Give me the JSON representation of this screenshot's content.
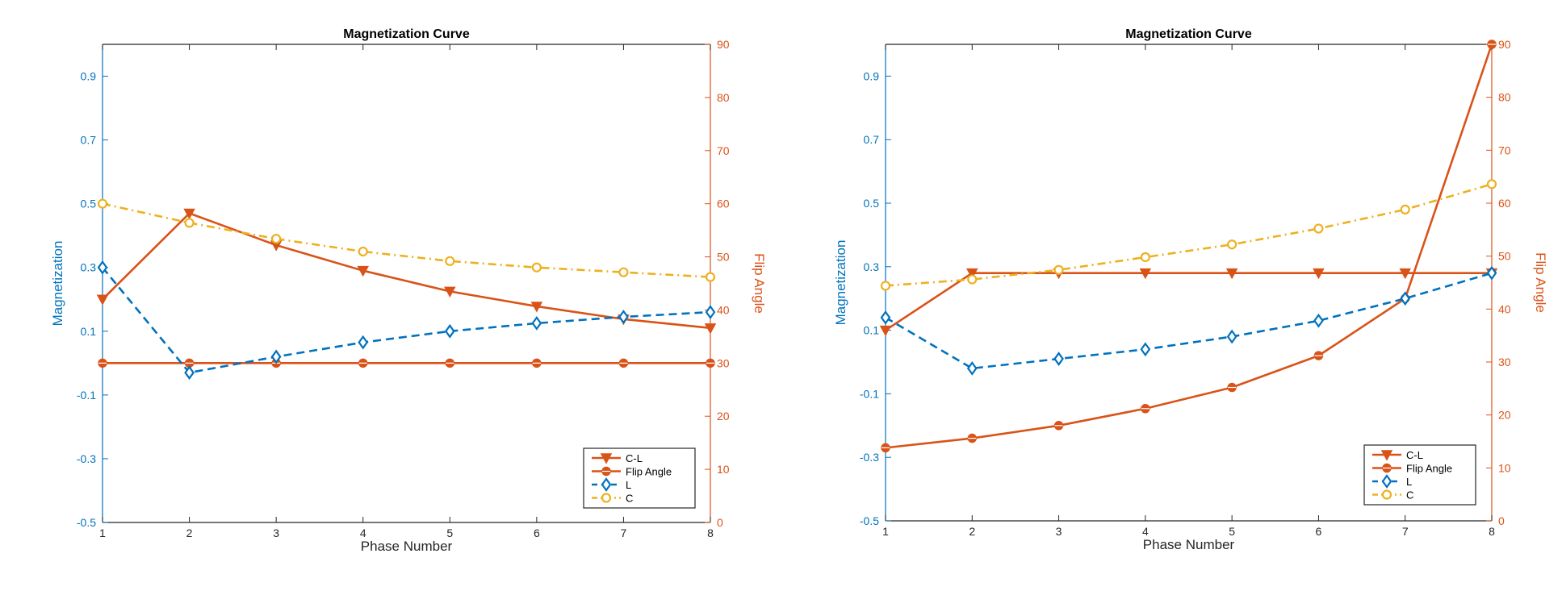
{
  "colors": {
    "left_axis": "#0072BD",
    "right_axis": "#D95319",
    "cl": "#D95319",
    "flip": "#D95319",
    "l": "#0072BD",
    "c": "#EDB120",
    "frame": "#262626"
  },
  "chart_data": [
    {
      "type": "line",
      "title": "Magnetization Curve",
      "xlabel": "Phase Number",
      "ylabel_left": "Magnetization",
      "ylabel_right": "Flip Angle",
      "x": [
        1,
        2,
        3,
        4,
        5,
        6,
        7,
        8
      ],
      "xlim": [
        1,
        8
      ],
      "ylim_left": [
        -0.5,
        1.0
      ],
      "ylim_right": [
        0,
        90
      ],
      "yticks_left": [
        "-0.5",
        "-0.3",
        "-0.1",
        "0.1",
        "0.3",
        "0.5",
        "0.7",
        "0.9"
      ],
      "yticks_right": [
        "0",
        "10",
        "20",
        "30",
        "40",
        "50",
        "60",
        "70",
        "80",
        "90"
      ],
      "xticks": [
        "1",
        "2",
        "3",
        "4",
        "5",
        "6",
        "7",
        "8"
      ],
      "grid": false,
      "legend_position": "bottom-right",
      "series": [
        {
          "name": "C-L",
          "axis": "left",
          "style": "solid",
          "marker": "triangle-down",
          "color_key": "cl",
          "values": [
            0.2,
            0.47,
            0.37,
            0.29,
            0.225,
            0.178,
            0.138,
            0.11
          ]
        },
        {
          "name": "Flip Angle",
          "axis": "right",
          "style": "solid",
          "marker": "circle",
          "color_key": "flip",
          "values": [
            30,
            30,
            30,
            30,
            30,
            30,
            30,
            30
          ]
        },
        {
          "name": "L",
          "axis": "left",
          "style": "dashed",
          "marker": "diamond",
          "color_key": "l",
          "values": [
            0.3,
            -0.03,
            0.02,
            0.065,
            0.1,
            0.125,
            0.145,
            0.16
          ]
        },
        {
          "name": "C",
          "axis": "left",
          "style": "dashdot",
          "marker": "circle-open",
          "color_key": "c",
          "values": [
            0.5,
            0.44,
            0.39,
            0.35,
            0.32,
            0.3,
            0.285,
            0.27
          ]
        }
      ]
    },
    {
      "type": "line",
      "title": "Magnetization Curve",
      "xlabel": "Phase Number",
      "ylabel_left": "Magnetization",
      "ylabel_right": "Flip Angle",
      "x": [
        1,
        2,
        3,
        4,
        5,
        6,
        7,
        8
      ],
      "xlim": [
        1,
        8
      ],
      "ylim_left": [
        -0.5,
        1.0
      ],
      "ylim_right": [
        0,
        90
      ],
      "yticks_left": [
        "-0.5",
        "-0.3",
        "-0.1",
        "0.1",
        "0.3",
        "0.5",
        "0.7",
        "0.9"
      ],
      "yticks_right": [
        "0",
        "10",
        "20",
        "30",
        "40",
        "50",
        "60",
        "70",
        "80",
        "90"
      ],
      "xticks": [
        "1",
        "2",
        "3",
        "4",
        "5",
        "6",
        "7",
        "8"
      ],
      "grid": false,
      "legend_position": "bottom-right",
      "series": [
        {
          "name": "C-L",
          "axis": "left",
          "style": "solid",
          "marker": "triangle-down",
          "color_key": "cl",
          "values": [
            0.1,
            0.28,
            0.28,
            0.28,
            0.28,
            0.28,
            0.28,
            0.28
          ]
        },
        {
          "name": "Flip Angle",
          "axis": "right",
          "style": "solid",
          "marker": "circle",
          "color_key": "flip",
          "values": [
            13.8,
            15.6,
            18.0,
            21.2,
            25.2,
            31.2,
            42.0,
            90.0
          ]
        },
        {
          "name": "L",
          "axis": "left",
          "style": "dashed",
          "marker": "diamond",
          "color_key": "l",
          "values": [
            0.14,
            -0.02,
            0.01,
            0.04,
            0.08,
            0.13,
            0.2,
            0.28
          ]
        },
        {
          "name": "C",
          "axis": "left",
          "style": "dashdot",
          "marker": "circle-open",
          "color_key": "c",
          "values": [
            0.24,
            0.26,
            0.29,
            0.33,
            0.37,
            0.42,
            0.48,
            0.56
          ]
        }
      ]
    }
  ]
}
